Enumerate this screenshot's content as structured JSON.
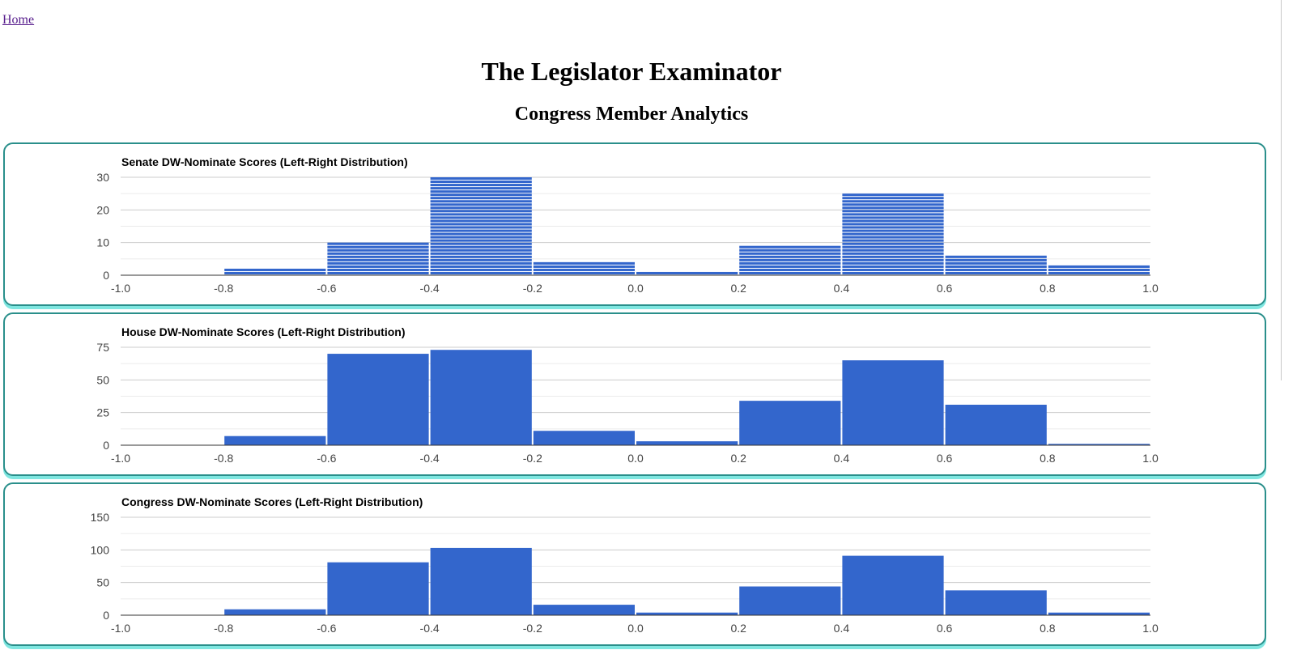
{
  "nav": {
    "home_label": "Home"
  },
  "header": {
    "title": "The Legislator Examinator",
    "subtitle": "Congress Member Analytics"
  },
  "colors": {
    "bar": "#3366cc",
    "panel_border": "#2a8f8b",
    "panel_shadow": "#7fe6e0"
  },
  "chart_data": [
    {
      "type": "bar",
      "title": "Senate DW-Nominate Scores (Left-Right Distribution)",
      "xlim": [
        -1.0,
        1.0
      ],
      "x_ticks": [
        "-1.0",
        "-0.8",
        "-0.6",
        "-0.4",
        "-0.2",
        "0.0",
        "0.2",
        "0.4",
        "0.6",
        "0.8",
        "1.0"
      ],
      "bin_edges": [
        -1.0,
        -0.8,
        -0.6,
        -0.4,
        -0.2,
        0.0,
        0.2,
        0.4,
        0.6,
        0.8,
        1.0
      ],
      "values": [
        0,
        2,
        10,
        30,
        4,
        1,
        9,
        25,
        6,
        3
      ],
      "ylim": [
        0,
        30
      ],
      "y_ticks": [
        "0",
        "10",
        "20",
        "30"
      ],
      "stacked_units": true,
      "grid": true
    },
    {
      "type": "bar",
      "title": "House DW-Nominate Scores (Left-Right Distribution)",
      "xlim": [
        -1.0,
        1.0
      ],
      "x_ticks": [
        "-1.0",
        "-0.8",
        "-0.6",
        "-0.4",
        "-0.2",
        "0.0",
        "0.2",
        "0.4",
        "0.6",
        "0.8",
        "1.0"
      ],
      "bin_edges": [
        -1.0,
        -0.8,
        -0.6,
        -0.4,
        -0.2,
        0.0,
        0.2,
        0.4,
        0.6,
        0.8,
        1.0
      ],
      "values": [
        0,
        7,
        70,
        73,
        11,
        3,
        34,
        65,
        31,
        1
      ],
      "ylim": [
        0,
        75
      ],
      "y_ticks": [
        "0",
        "25",
        "50",
        "75"
      ],
      "stacked_units": false,
      "grid": true
    },
    {
      "type": "bar",
      "title": "Congress DW-Nominate Scores (Left-Right Distribution)",
      "xlim": [
        -1.0,
        1.0
      ],
      "x_ticks": [
        "-1.0",
        "-0.8",
        "-0.6",
        "-0.4",
        "-0.2",
        "0.0",
        "0.2",
        "0.4",
        "0.6",
        "0.8",
        "1.0"
      ],
      "bin_edges": [
        -1.0,
        -0.8,
        -0.6,
        -0.4,
        -0.2,
        0.0,
        0.2,
        0.4,
        0.6,
        0.8,
        1.0
      ],
      "values": [
        0,
        9,
        81,
        103,
        16,
        4,
        44,
        91,
        38,
        4
      ],
      "ylim": [
        0,
        150
      ],
      "y_ticks": [
        "0",
        "50",
        "100",
        "150"
      ],
      "stacked_units": false,
      "grid": true
    }
  ]
}
